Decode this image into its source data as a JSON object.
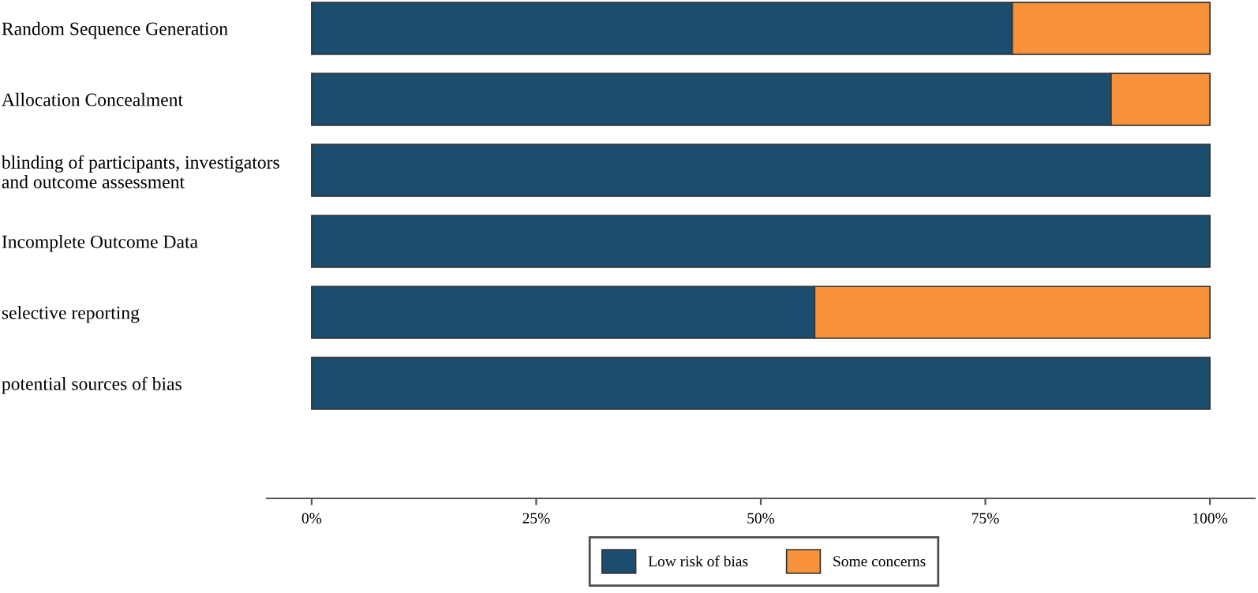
{
  "chart_data": {
    "type": "bar",
    "orientation": "horizontal",
    "stacked": true,
    "categories": [
      "Random Sequence Generation",
      "Allocation Concealment",
      "blinding of participants, investigators\nand outcome assessment",
      "Incomplete Outcome Data",
      "selective reporting",
      "potential sources of bias"
    ],
    "series": [
      {
        "name": "Low risk of bias",
        "color": "#1a4d6e",
        "values": [
          78,
          89,
          100,
          100,
          56,
          100
        ]
      },
      {
        "name": "Some concerns",
        "color": "#f7923a",
        "values": [
          22,
          11,
          null,
          null,
          44,
          null
        ]
      }
    ],
    "xlim": [
      -5,
      105
    ],
    "xticks": [
      {
        "value": 0,
        "label": "0%"
      },
      {
        "value": 25,
        "label": "25%"
      },
      {
        "value": 50,
        "label": "50%"
      },
      {
        "value": 75,
        "label": "75%"
      },
      {
        "value": 100,
        "label": "100%"
      }
    ],
    "grid": false,
    "legend": "bottom"
  }
}
